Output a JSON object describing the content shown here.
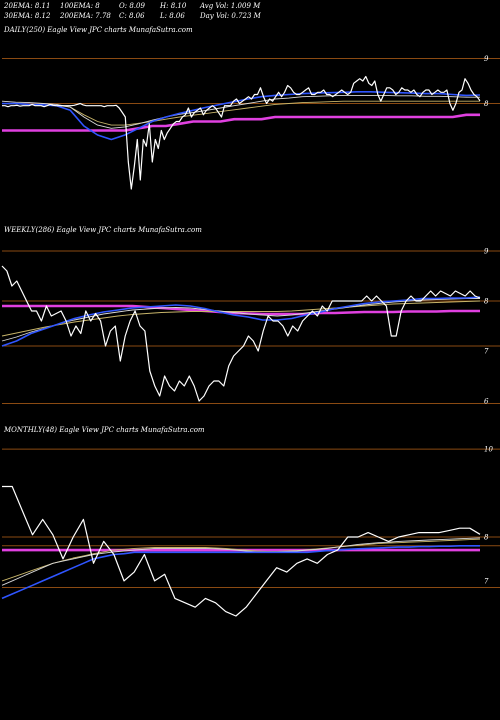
{
  "header": {
    "row1": [
      "20EMA: 8.11",
      "100EMA: 8",
      "O: 8.09",
      "H: 8.10",
      "Avg Vol: 1.009 M"
    ],
    "row2": [
      "30EMA: 8.12",
      "200EMA: 7.78",
      "C: 8.06",
      "L: 8.06",
      "Day Vol: 0.723 M"
    ]
  },
  "colors": {
    "background": "#000000",
    "price": "#ffffff",
    "ema_fast": "#2f55ff",
    "ema_mid_gold": "#c8b56a",
    "ema_mid_white": "#d8d8d8",
    "ema_slow": "#e040e0",
    "support_line": "#8a4a12"
  },
  "chart_data": [
    {
      "type": "line",
      "title": "DAILY(250) Eagle  View  JPC charts MunafaSutra.com",
      "ylim": [
        5.5,
        9.5
      ],
      "yticks": [
        9,
        8
      ],
      "grid": false,
      "support_levels": [
        9.0,
        8.0
      ],
      "series": [
        {
          "role": "price",
          "values": [
            7.95,
            7.95,
            7.93,
            7.95,
            7.95,
            7.96,
            7.94,
            7.95,
            7.95,
            7.95,
            7.98,
            7.95,
            7.95,
            7.95,
            7.93,
            7.95,
            7.98,
            7.96,
            7.95,
            7.95,
            7.95,
            7.95,
            7.95,
            7.95,
            7.96,
            7.98,
            8.0,
            7.97,
            7.95,
            7.95,
            7.95,
            7.95,
            7.95,
            7.95,
            7.93,
            7.95,
            7.95,
            7.95,
            7.96,
            7.9,
            7.8,
            7.7,
            6.7,
            6.1,
            6.6,
            7.2,
            6.3,
            7.2,
            7.05,
            7.55,
            6.7,
            7.2,
            7.0,
            7.4,
            7.2,
            7.35,
            7.45,
            7.55,
            7.6,
            7.6,
            7.7,
            7.75,
            7.9,
            7.7,
            7.8,
            7.85,
            7.9,
            7.75,
            7.85,
            7.9,
            7.95,
            7.9,
            7.8,
            7.7,
            7.95,
            7.95,
            7.95,
            8.05,
            8.1,
            8.0,
            8.05,
            8.1,
            8.15,
            8.1,
            8.2,
            8.2,
            8.35,
            8.15,
            8.0,
            8.1,
            8.05,
            8.15,
            8.25,
            8.15,
            8.25,
            8.4,
            8.35,
            8.25,
            8.2,
            8.2,
            8.25,
            8.3,
            8.35,
            8.2,
            8.2,
            8.25,
            8.25,
            8.3,
            8.2,
            8.2,
            8.15,
            8.2,
            8.25,
            8.3,
            8.25,
            8.2,
            8.25,
            8.45,
            8.5,
            8.55,
            8.5,
            8.6,
            8.45,
            8.4,
            8.5,
            8.2,
            8.05,
            8.2,
            8.35,
            8.35,
            8.3,
            8.2,
            8.25,
            8.35,
            8.3,
            8.3,
            8.25,
            8.3,
            8.2,
            8.15,
            8.25,
            8.3,
            8.3,
            8.2,
            8.25,
            8.3,
            8.25,
            8.25,
            8.3,
            8.0,
            7.85,
            8.0,
            8.25,
            8.3,
            8.55,
            8.45,
            8.3,
            8.2,
            8.15,
            8.06
          ]
        },
        {
          "role": "ema_fast",
          "values": [
            8.0,
            8.0,
            7.98,
            7.97,
            7.95,
            7.85,
            7.5,
            7.3,
            7.2,
            7.3,
            7.45,
            7.6,
            7.7,
            7.78,
            7.85,
            7.92,
            7.98,
            8.04,
            8.1,
            8.15,
            8.18,
            8.2,
            8.22,
            8.23,
            8.24,
            8.25,
            8.26,
            8.26,
            8.25,
            8.24,
            8.23,
            8.22,
            8.22,
            8.2,
            8.18,
            8.19
          ]
        },
        {
          "role": "ema_mid_white",
          "values": [
            8.05,
            8.03,
            8.02,
            8.0,
            7.98,
            7.92,
            7.7,
            7.52,
            7.45,
            7.48,
            7.55,
            7.63,
            7.7,
            7.76,
            7.8,
            7.85,
            7.9,
            7.95,
            8.0,
            8.05,
            8.1,
            8.12,
            8.15,
            8.16,
            8.17,
            8.18,
            8.18,
            8.18,
            8.18,
            8.17,
            8.17,
            8.16,
            8.16,
            8.15,
            8.14,
            8.14
          ]
        },
        {
          "role": "ema_mid_gold",
          "values": [
            8.0,
            7.99,
            7.98,
            7.97,
            7.96,
            7.92,
            7.75,
            7.6,
            7.52,
            7.52,
            7.56,
            7.6,
            7.65,
            7.7,
            7.74,
            7.78,
            7.82,
            7.86,
            7.9,
            7.94,
            7.98,
            8.0,
            8.02,
            8.03,
            8.04,
            8.05,
            8.05,
            8.05,
            8.05,
            8.05,
            8.05,
            8.05,
            8.05,
            8.05,
            8.05,
            8.05
          ]
        },
        {
          "role": "ema_slow",
          "values": [
            7.4,
            7.4,
            7.4,
            7.4,
            7.4,
            7.4,
            7.4,
            7.4,
            7.4,
            7.4,
            7.45,
            7.5,
            7.5,
            7.55,
            7.6,
            7.6,
            7.6,
            7.65,
            7.65,
            7.65,
            7.7,
            7.7,
            7.7,
            7.7,
            7.7,
            7.7,
            7.7,
            7.7,
            7.7,
            7.7,
            7.7,
            7.7,
            7.7,
            7.7,
            7.75,
            7.75
          ]
        }
      ]
    },
    {
      "type": "line",
      "title": "WEEKLY(286) Eagle  View  JPC charts MunafaSutra.com",
      "ylim": [
        5.7,
        9.3
      ],
      "yticks": [
        9,
        8,
        7,
        6
      ],
      "grid": false,
      "support_levels": [
        9.0,
        8.0,
        7.1,
        5.95
      ],
      "series": [
        {
          "role": "price",
          "values": [
            8.7,
            8.6,
            8.3,
            8.4,
            8.2,
            8.0,
            7.8,
            7.8,
            7.6,
            7.9,
            7.7,
            7.75,
            7.8,
            7.6,
            7.3,
            7.5,
            7.35,
            7.8,
            7.6,
            7.75,
            7.6,
            7.1,
            7.4,
            7.5,
            6.8,
            7.3,
            7.6,
            7.8,
            7.5,
            7.4,
            6.6,
            6.3,
            6.1,
            6.5,
            6.3,
            6.2,
            6.4,
            6.3,
            6.5,
            6.3,
            6.0,
            6.1,
            6.3,
            6.4,
            6.4,
            6.3,
            6.7,
            6.9,
            7.0,
            7.1,
            7.3,
            7.2,
            7.0,
            7.4,
            7.7,
            7.6,
            7.6,
            7.5,
            7.3,
            7.5,
            7.4,
            7.6,
            7.7,
            7.8,
            7.7,
            7.9,
            7.8,
            8.0,
            8.0,
            8.0,
            8.0,
            8.0,
            8.0,
            8.0,
            8.1,
            8.0,
            8.1,
            8.0,
            7.9,
            7.3,
            7.3,
            7.8,
            8.0,
            8.1,
            8.0,
            8.0,
            8.1,
            8.2,
            8.1,
            8.2,
            8.15,
            8.1,
            8.2,
            8.15,
            8.1,
            8.2,
            8.1,
            8.06
          ]
        },
        {
          "role": "ema_fast",
          "values": [
            7.1,
            7.2,
            7.35,
            7.45,
            7.55,
            7.65,
            7.72,
            7.78,
            7.82,
            7.86,
            7.88,
            7.9,
            7.92,
            7.9,
            7.85,
            7.78,
            7.72,
            7.68,
            7.62,
            7.62,
            7.65,
            7.72,
            7.78,
            7.85,
            7.9,
            7.95,
            7.98,
            8.0,
            8.02,
            8.05,
            8.05,
            8.06,
            8.06,
            8.08
          ]
        },
        {
          "role": "ema_mid_white",
          "values": [
            7.2,
            7.28,
            7.38,
            7.46,
            7.55,
            7.62,
            7.68,
            7.74,
            7.78,
            7.82,
            7.84,
            7.86,
            7.87,
            7.86,
            7.83,
            7.8,
            7.77,
            7.74,
            7.72,
            7.7,
            7.72,
            7.76,
            7.8,
            7.84,
            7.88,
            7.92,
            7.95,
            7.98,
            8.0,
            8.02,
            8.03,
            8.04,
            8.05,
            8.05
          ]
        },
        {
          "role": "ema_mid_gold",
          "values": [
            7.3,
            7.36,
            7.42,
            7.48,
            7.53,
            7.58,
            7.62,
            7.66,
            7.7,
            7.73,
            7.75,
            7.77,
            7.78,
            7.79,
            7.79,
            7.79,
            7.79,
            7.79,
            7.79,
            7.79,
            7.8,
            7.82,
            7.84,
            7.86,
            7.88,
            7.9,
            7.92,
            7.94,
            7.95,
            7.96,
            7.97,
            7.98,
            7.99,
            8.0
          ]
        },
        {
          "role": "ema_slow",
          "values": [
            7.9,
            7.9,
            7.9,
            7.9,
            7.9,
            7.9,
            7.9,
            7.9,
            7.9,
            7.9,
            7.88,
            7.86,
            7.84,
            7.82,
            7.8,
            7.78,
            7.76,
            7.75,
            7.74,
            7.74,
            7.74,
            7.74,
            7.76,
            7.76,
            7.77,
            7.78,
            7.78,
            7.78,
            7.79,
            7.79,
            7.79,
            7.8,
            7.8,
            7.8
          ]
        }
      ]
    },
    {
      "type": "line",
      "title": "MONTHLY(48) Eagle  View  JPC charts MunafaSutra.com",
      "ylim": [
        6.2,
        10.3
      ],
      "yticks": [
        10,
        8,
        7
      ],
      "grid": false,
      "support_levels": [
        10.0,
        8.0,
        7.8,
        6.85
      ],
      "series": [
        {
          "role": "price",
          "values": [
            9.15,
            9.15,
            8.6,
            8.05,
            8.4,
            8.05,
            7.5,
            8.0,
            8.4,
            7.4,
            7.9,
            7.6,
            7.0,
            7.2,
            7.6,
            7.0,
            7.15,
            6.6,
            6.5,
            6.4,
            6.6,
            6.5,
            6.3,
            6.2,
            6.4,
            6.7,
            7.0,
            7.3,
            7.2,
            7.4,
            7.5,
            7.4,
            7.6,
            7.7,
            8.0,
            8.0,
            8.1,
            8.0,
            7.9,
            8.0,
            8.05,
            8.1,
            8.1,
            8.1,
            8.15,
            8.2,
            8.2,
            8.06
          ]
        },
        {
          "role": "ema_fast",
          "values": [
            6.6,
            6.7,
            6.8,
            6.9,
            7.0,
            7.1,
            7.2,
            7.3,
            7.4,
            7.5,
            7.55,
            7.6,
            7.62,
            7.65,
            7.65,
            7.65,
            7.65,
            7.65,
            7.65,
            7.65,
            7.65,
            7.65,
            7.65,
            7.65,
            7.65,
            7.65,
            7.65,
            7.65,
            7.65,
            7.65,
            7.65,
            7.67,
            7.69,
            7.7,
            7.72,
            7.73,
            7.74,
            7.75,
            7.76,
            7.77,
            7.77,
            7.78,
            7.78,
            7.79,
            7.79,
            7.8,
            7.8,
            7.8
          ]
        },
        {
          "role": "ema_mid_white",
          "values": [
            6.9,
            7.0,
            7.1,
            7.2,
            7.3,
            7.4,
            7.45,
            7.5,
            7.55,
            7.6,
            7.63,
            7.66,
            7.68,
            7.7,
            7.72,
            7.74,
            7.74,
            7.74,
            7.74,
            7.74,
            7.74,
            7.73,
            7.72,
            7.7,
            7.68,
            7.66,
            7.66,
            7.66,
            7.67,
            7.68,
            7.7,
            7.72,
            7.74,
            7.77,
            7.8,
            7.83,
            7.85,
            7.87,
            7.88,
            7.9,
            7.91,
            7.92,
            7.93,
            7.94,
            7.95,
            7.96,
            7.97,
            7.98
          ]
        },
        {
          "role": "ema_mid_gold",
          "values": [
            7.0,
            7.08,
            7.16,
            7.24,
            7.32,
            7.4,
            7.46,
            7.52,
            7.57,
            7.62,
            7.66,
            7.7,
            7.72,
            7.74,
            7.75,
            7.76,
            7.76,
            7.76,
            7.76,
            7.76,
            7.76,
            7.75,
            7.74,
            7.72,
            7.7,
            7.68,
            7.67,
            7.67,
            7.68,
            7.69,
            7.71,
            7.73,
            7.75,
            7.77,
            7.79,
            7.81,
            7.83,
            7.85,
            7.86,
            7.87,
            7.88,
            7.89,
            7.9,
            7.91,
            7.92,
            7.93,
            7.94,
            7.95
          ]
        },
        {
          "role": "ema_slow",
          "values": [
            7.7,
            7.7,
            7.7,
            7.7,
            7.7,
            7.7,
            7.7,
            7.7,
            7.7,
            7.7,
            7.7,
            7.7,
            7.7,
            7.7,
            7.7,
            7.7,
            7.7,
            7.7,
            7.7,
            7.7,
            7.7,
            7.7,
            7.7,
            7.7,
            7.7,
            7.7,
            7.7,
            7.7,
            7.7,
            7.7,
            7.7,
            7.7,
            7.7,
            7.7,
            7.7,
            7.7,
            7.7,
            7.7,
            7.7,
            7.7,
            7.7,
            7.7,
            7.7,
            7.7,
            7.7,
            7.7,
            7.7,
            7.7
          ]
        }
      ]
    }
  ]
}
